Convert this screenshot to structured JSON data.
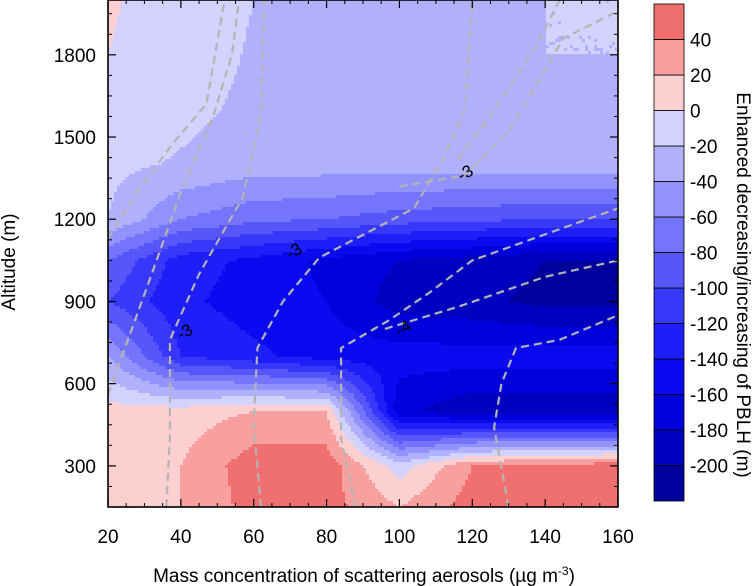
{
  "chart_data": {
    "type": "heatmap",
    "title": "",
    "xlabel": "Mass concentration of scattering aerosols (µg m",
    "xlabel_sup": "-3",
    "xlabel_close": ")",
    "ylabel": "Altitude (m)",
    "xlim": [
      20,
      160
    ],
    "ylim": [
      150,
      2000
    ],
    "x_ticks": [
      20,
      40,
      60,
      80,
      100,
      120,
      140,
      160
    ],
    "y_ticks": [
      300,
      600,
      900,
      1200,
      1500,
      1800
    ],
    "grid": false,
    "colorbar": {
      "label": "Enhanced decreasing/increasing  of PBLH (m)",
      "levels": [
        -220,
        -200,
        -180,
        -160,
        -140,
        -120,
        -100,
        -80,
        -60,
        -40,
        -20,
        0,
        20,
        40,
        60
      ],
      "tick_labels": [
        -200,
        -180,
        -160,
        -140,
        -120,
        -100,
        -80,
        -60,
        -40,
        -20,
        0,
        20,
        40
      ],
      "colors": [
        "#00009c",
        "#0000c0",
        "#0000dc",
        "#0a0af0",
        "#1e1ef8",
        "#3838fa",
        "#5656fb",
        "#7474fc",
        "#9292fc",
        "#b0b0fc",
        "#d2d2fc",
        "#fcd0d0",
        "#f8a0a0",
        "#f07070"
      ]
    },
    "x": [
      20,
      40,
      60,
      80,
      100,
      120,
      140,
      160
    ],
    "y": [
      150,
      300,
      500,
      700,
      900,
      1050,
      1200,
      1400,
      1600,
      1800,
      2000
    ],
    "z": [
      [
        10,
        20,
        48,
        48,
        20,
        50,
        56,
        60
      ],
      [
        10,
        20,
        52,
        52,
        -10,
        40,
        48,
        52
      ],
      [
        8,
        10,
        20,
        20,
        -175,
        -195,
        -195,
        -195
      ],
      [
        -40,
        -120,
        -135,
        -150,
        -150,
        -150,
        -150,
        -150
      ],
      [
        -100,
        -135,
        -150,
        -160,
        -190,
        -195,
        -205,
        -205
      ],
      [
        -80,
        -130,
        -145,
        -165,
        -180,
        -190,
        -200,
        -200
      ],
      [
        -20,
        -60,
        -75,
        -80,
        -90,
        -95,
        -100,
        -100
      ],
      [
        -15,
        -22,
        -30,
        -30,
        -30,
        -30,
        -28,
        -26
      ],
      [
        0,
        -15,
        -24,
        -24,
        -24,
        -24,
        -22,
        -20
      ],
      [
        0,
        -10,
        -22,
        -22,
        -22,
        -22,
        -20,
        -20
      ],
      [
        2,
        -8,
        -20,
        -20,
        -20,
        -20,
        -20,
        -20
      ]
    ],
    "contour_lines": [
      {
        "points": [
          [
            36,
            150
          ],
          [
            37,
            400
          ],
          [
            37,
            760
          ],
          [
            45,
            1000
          ],
          [
            57,
            1280
          ],
          [
            62,
            1580
          ],
          [
            63,
            2000
          ]
        ]
      },
      {
        "points": [
          [
            62,
            150
          ],
          [
            60,
            450
          ],
          [
            61,
            730
          ],
          [
            68,
            900
          ],
          [
            78,
            1060
          ],
          [
            104,
            1240
          ],
          [
            112,
            1420
          ],
          [
            118,
            1600
          ],
          [
            120,
            2000
          ]
        ]
      },
      {
        "points": [
          [
            88,
            150
          ],
          [
            84,
            400
          ],
          [
            84,
            730
          ],
          [
            97,
            830
          ],
          [
            108,
            930
          ],
          [
            120,
            1050
          ],
          [
            160,
            1240
          ]
        ]
      },
      {
        "points": [
          [
            130,
            150
          ],
          [
            126,
            440
          ],
          [
            128,
            600
          ],
          [
            132,
            730
          ],
          [
            144,
            760
          ],
          [
            160,
            850
          ]
        ]
      },
      {
        "points": [
          [
            20,
            560
          ],
          [
            26,
            780
          ],
          [
            32,
            1000
          ],
          [
            40,
            1300
          ],
          [
            49,
            1580
          ],
          [
            54,
            1800
          ],
          [
            56,
            2000
          ]
        ]
      },
      {
        "points": [
          [
            20,
            1130
          ],
          [
            28,
            1300
          ],
          [
            38,
            1480
          ],
          [
            47,
            1620
          ],
          [
            52,
            2000
          ]
        ]
      },
      {
        "points": [
          [
            100,
            1320
          ],
          [
            118,
            1360
          ],
          [
            130,
            1520
          ],
          [
            138,
            1700
          ],
          [
            145,
            1860
          ],
          [
            160,
            1960
          ]
        ]
      },
      {
        "points": [
          [
            116,
            1420
          ],
          [
            124,
            1560
          ],
          [
            137,
            1820
          ],
          [
            144,
            2000
          ]
        ]
      },
      {
        "points": [
          [
            96,
            800
          ],
          [
            116,
            880
          ],
          [
            140,
            990
          ],
          [
            160,
            1050
          ]
        ]
      }
    ],
    "annotations": [
      {
        "text": "-3",
        "x": 41,
        "y": 790
      },
      {
        "text": "-3",
        "x": 71,
        "y": 1085
      },
      {
        "text": "-3",
        "x": 118,
        "y": 1370
      },
      {
        "text": "-4",
        "x": 101,
        "y": 805
      }
    ]
  }
}
